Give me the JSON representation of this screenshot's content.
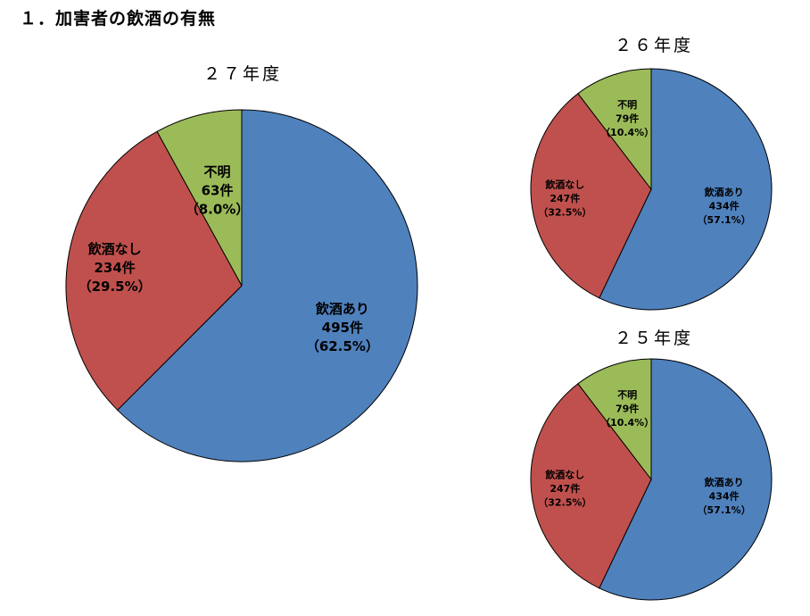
{
  "page": {
    "title": "１．加害者の飲酒の有無"
  },
  "chart_data": [
    {
      "type": "pie",
      "title": "２７年度",
      "slices": [
        {
          "name": "飲酒あり",
          "count": "495件",
          "percent_label": "（62.5%）",
          "value": 62.5,
          "color": "#4F81BD"
        },
        {
          "name": "飲酒なし",
          "count": "234件",
          "percent_label": "（29.5%）",
          "value": 29.5,
          "color": "#C0504D"
        },
        {
          "name": "不明",
          "count": "63件",
          "percent_label": "（8.0%）",
          "value": 8.0,
          "color": "#9BBB59"
        }
      ]
    },
    {
      "type": "pie",
      "title": "２６年度",
      "slices": [
        {
          "name": "飲酒あり",
          "count": "434件",
          "percent_label": "（57.1%）",
          "value": 57.1,
          "color": "#4F81BD"
        },
        {
          "name": "飲酒なし",
          "count": "247件",
          "percent_label": "（32.5%）",
          "value": 32.5,
          "color": "#C0504D"
        },
        {
          "name": "不明",
          "count": "79件",
          "percent_label": "（10.4%）",
          "value": 10.4,
          "color": "#9BBB59"
        }
      ]
    },
    {
      "type": "pie",
      "title": "２５年度",
      "slices": [
        {
          "name": "飲酒あり",
          "count": "434件",
          "percent_label": "（57.1%）",
          "value": 57.1,
          "color": "#4F81BD"
        },
        {
          "name": "飲酒なし",
          "count": "247件",
          "percent_label": "（32.5%）",
          "value": 32.5,
          "color": "#C0504D"
        },
        {
          "name": "不明",
          "count": "79件",
          "percent_label": "（10.4%）",
          "value": 10.4,
          "color": "#9BBB59"
        }
      ]
    }
  ]
}
